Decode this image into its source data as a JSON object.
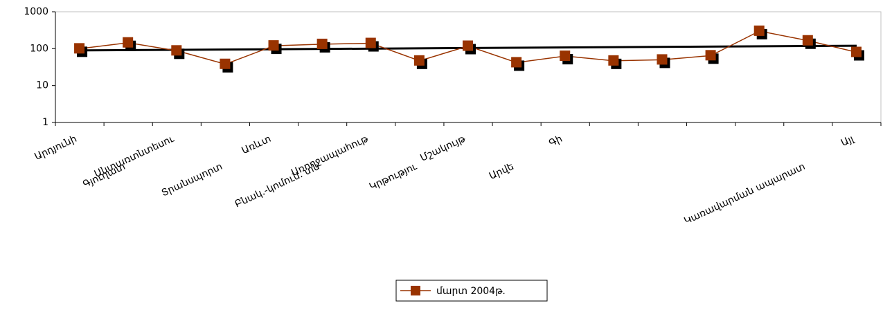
{
  "chart_data": {
    "type": "line",
    "log_scale": true,
    "categories": [
      "Արդյունի",
      "Գյուղատ",
      "Անտառտնտեսու",
      "Տրանսպորտ",
      "Առևտ",
      "Բնակ.-կոմուն. տն",
      "Առողջապահութ",
      "Կրթությու",
      "Մշակույթ",
      "Արվե",
      "Գի",
      null,
      null,
      null,
      null,
      "Կառավարման ապարատ",
      "Այլ"
    ],
    "series": [
      {
        "name": "մարտ 2004թ.",
        "color": "#993300",
        "values": [
          100,
          145,
          88,
          38,
          120,
          132,
          140,
          47,
          118,
          42,
          63,
          47,
          50,
          65,
          300,
          165,
          80
        ]
      }
    ],
    "trendline": {
      "color": "#000000",
      "values": [
        90,
        120
      ]
    },
    "ylim": [
      1,
      1000
    ],
    "yticks": [
      1,
      10,
      100,
      1000
    ],
    "grid": false,
    "legend": "bottom"
  }
}
